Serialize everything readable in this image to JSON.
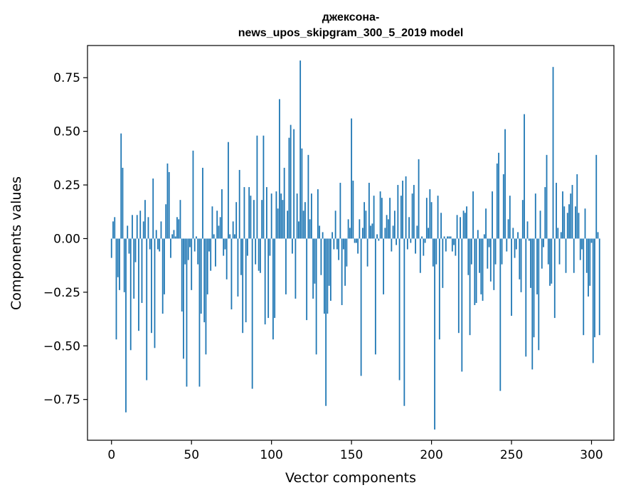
{
  "chart_data": {
    "type": "bar",
    "title_lines": [
      "джексона-",
      "news_upos_skipgram_300_5_2019 model"
    ],
    "xlabel": "Vector components",
    "ylabel": "Components values",
    "xlim": [
      -15,
      314
    ],
    "ylim": [
      -0.94,
      0.9
    ],
    "xticks": [
      0,
      50,
      100,
      150,
      200,
      250,
      300
    ],
    "yticks": [
      -0.75,
      -0.5,
      -0.25,
      0.0,
      0.25,
      0.5,
      0.75
    ],
    "ytick_labels": [
      "−0.75",
      "−0.50",
      "−0.25",
      "0.00",
      "0.25",
      "0.50",
      "0.75"
    ],
    "grid": false,
    "color": "#1f77b4",
    "values": [
      -0.09,
      0.08,
      0.1,
      -0.47,
      -0.18,
      -0.24,
      0.49,
      0.33,
      -0.25,
      -0.81,
      0.06,
      -0.07,
      -0.52,
      0.11,
      -0.28,
      -0.11,
      0.11,
      -0.43,
      0.13,
      -0.3,
      0.08,
      0.18,
      -0.66,
      0.1,
      -0.05,
      -0.44,
      0.28,
      -0.51,
      0.04,
      -0.05,
      -0.06,
      0.08,
      -0.35,
      -0.26,
      0.16,
      0.35,
      0.31,
      -0.09,
      0.02,
      0.04,
      0.01,
      0.1,
      0.09,
      0.18,
      -0.34,
      -0.56,
      -0.12,
      -0.69,
      -0.1,
      -0.04,
      -0.24,
      0.41,
      -0.06,
      0.01,
      -0.12,
      -0.69,
      -0.35,
      0.33,
      -0.39,
      -0.54,
      -0.26,
      -0.06,
      -0.15,
      0.15,
      0.02,
      -0.13,
      0.13,
      0.06,
      0.1,
      0.23,
      -0.08,
      -0.05,
      -0.19,
      0.45,
      0.02,
      -0.33,
      0.08,
      0.02,
      0.17,
      -0.27,
      0.32,
      -0.17,
      -0.44,
      0.24,
      -0.39,
      -0.08,
      0.24,
      0.2,
      -0.7,
      0.18,
      -0.12,
      0.48,
      -0.15,
      -0.16,
      0.18,
      0.48,
      -0.4,
      0.24,
      -0.37,
      -0.08,
      0.21,
      -0.47,
      -0.37,
      0.22,
      0.14,
      0.65,
      0.21,
      0.18,
      0.33,
      -0.26,
      0.13,
      0.47,
      0.53,
      -0.07,
      0.51,
      -0.28,
      0.21,
      0.08,
      0.83,
      0.42,
      0.13,
      0.17,
      -0.38,
      0.39,
      0.09,
      0.21,
      -0.28,
      -0.21,
      -0.54,
      0.23,
      0.06,
      -0.17,
      0.03,
      -0.35,
      -0.78,
      -0.35,
      -0.22,
      -0.29,
      0.03,
      -0.05,
      0.13,
      -0.05,
      -0.1,
      0.26,
      -0.31,
      -0.05,
      -0.22,
      -0.13,
      0.09,
      0.05,
      0.56,
      0.27,
      -0.02,
      -0.02,
      -0.07,
      0.09,
      -0.64,
      0.05,
      0.17,
      0.13,
      -0.13,
      0.26,
      0.06,
      0.07,
      0.2,
      -0.54,
      0.02,
      -0.01,
      0.22,
      0.19,
      -0.26,
      0.05,
      0.11,
      0.09,
      0.19,
      -0.06,
      0.06,
      0.13,
      -0.03,
      0.25,
      -0.66,
      0.2,
      0.27,
      -0.78,
      0.29,
      -0.05,
      0.1,
      -0.02,
      0.21,
      0.25,
      -0.07,
      0.06,
      0.37,
      -0.16,
      0.01,
      -0.08,
      -0.02,
      0.19,
      0.05,
      0.23,
      0.17,
      -0.13,
      -0.89,
      -0.12,
      0.2,
      -0.47,
      0.12,
      -0.23,
      0.01,
      -0.06,
      0.01,
      0.01,
      0.01,
      -0.06,
      -0.03,
      -0.08,
      0.11,
      -0.44,
      0.1,
      -0.62,
      0.13,
      0.12,
      0.15,
      -0.17,
      -0.45,
      -0.12,
      0.22,
      -0.31,
      -0.3,
      0.04,
      -0.16,
      -0.26,
      -0.29,
      0.02,
      0.14,
      -0.14,
      -0.04,
      -0.2,
      0.22,
      -0.24,
      -0.12,
      0.35,
      0.4,
      -0.71,
      -0.12,
      0.3,
      0.51,
      -0.06,
      0.09,
      0.2,
      -0.36,
      0.05,
      -0.09,
      -0.05,
      0.03,
      -0.19,
      -0.25,
      0.18,
      0.58,
      -0.55,
      0.08,
      -0.01,
      -0.23,
      -0.61,
      -0.46,
      0.21,
      -0.26,
      -0.52,
      0.13,
      -0.14,
      -0.04,
      0.24,
      0.39,
      -0.12,
      -0.22,
      -0.21,
      0.8,
      -0.37,
      0.26,
      0.05,
      -0.12,
      0.03,
      0.22,
      0.15,
      -0.16,
      0.12,
      0.16,
      0.21,
      0.25,
      -0.16,
      0.15,
      0.3,
      0.12,
      -0.1,
      -0.05,
      -0.45,
      0.14,
      -0.16,
      -0.27,
      -0.22,
      -0.02,
      -0.58,
      -0.46,
      0.39,
      0.03,
      -0.45
    ]
  }
}
